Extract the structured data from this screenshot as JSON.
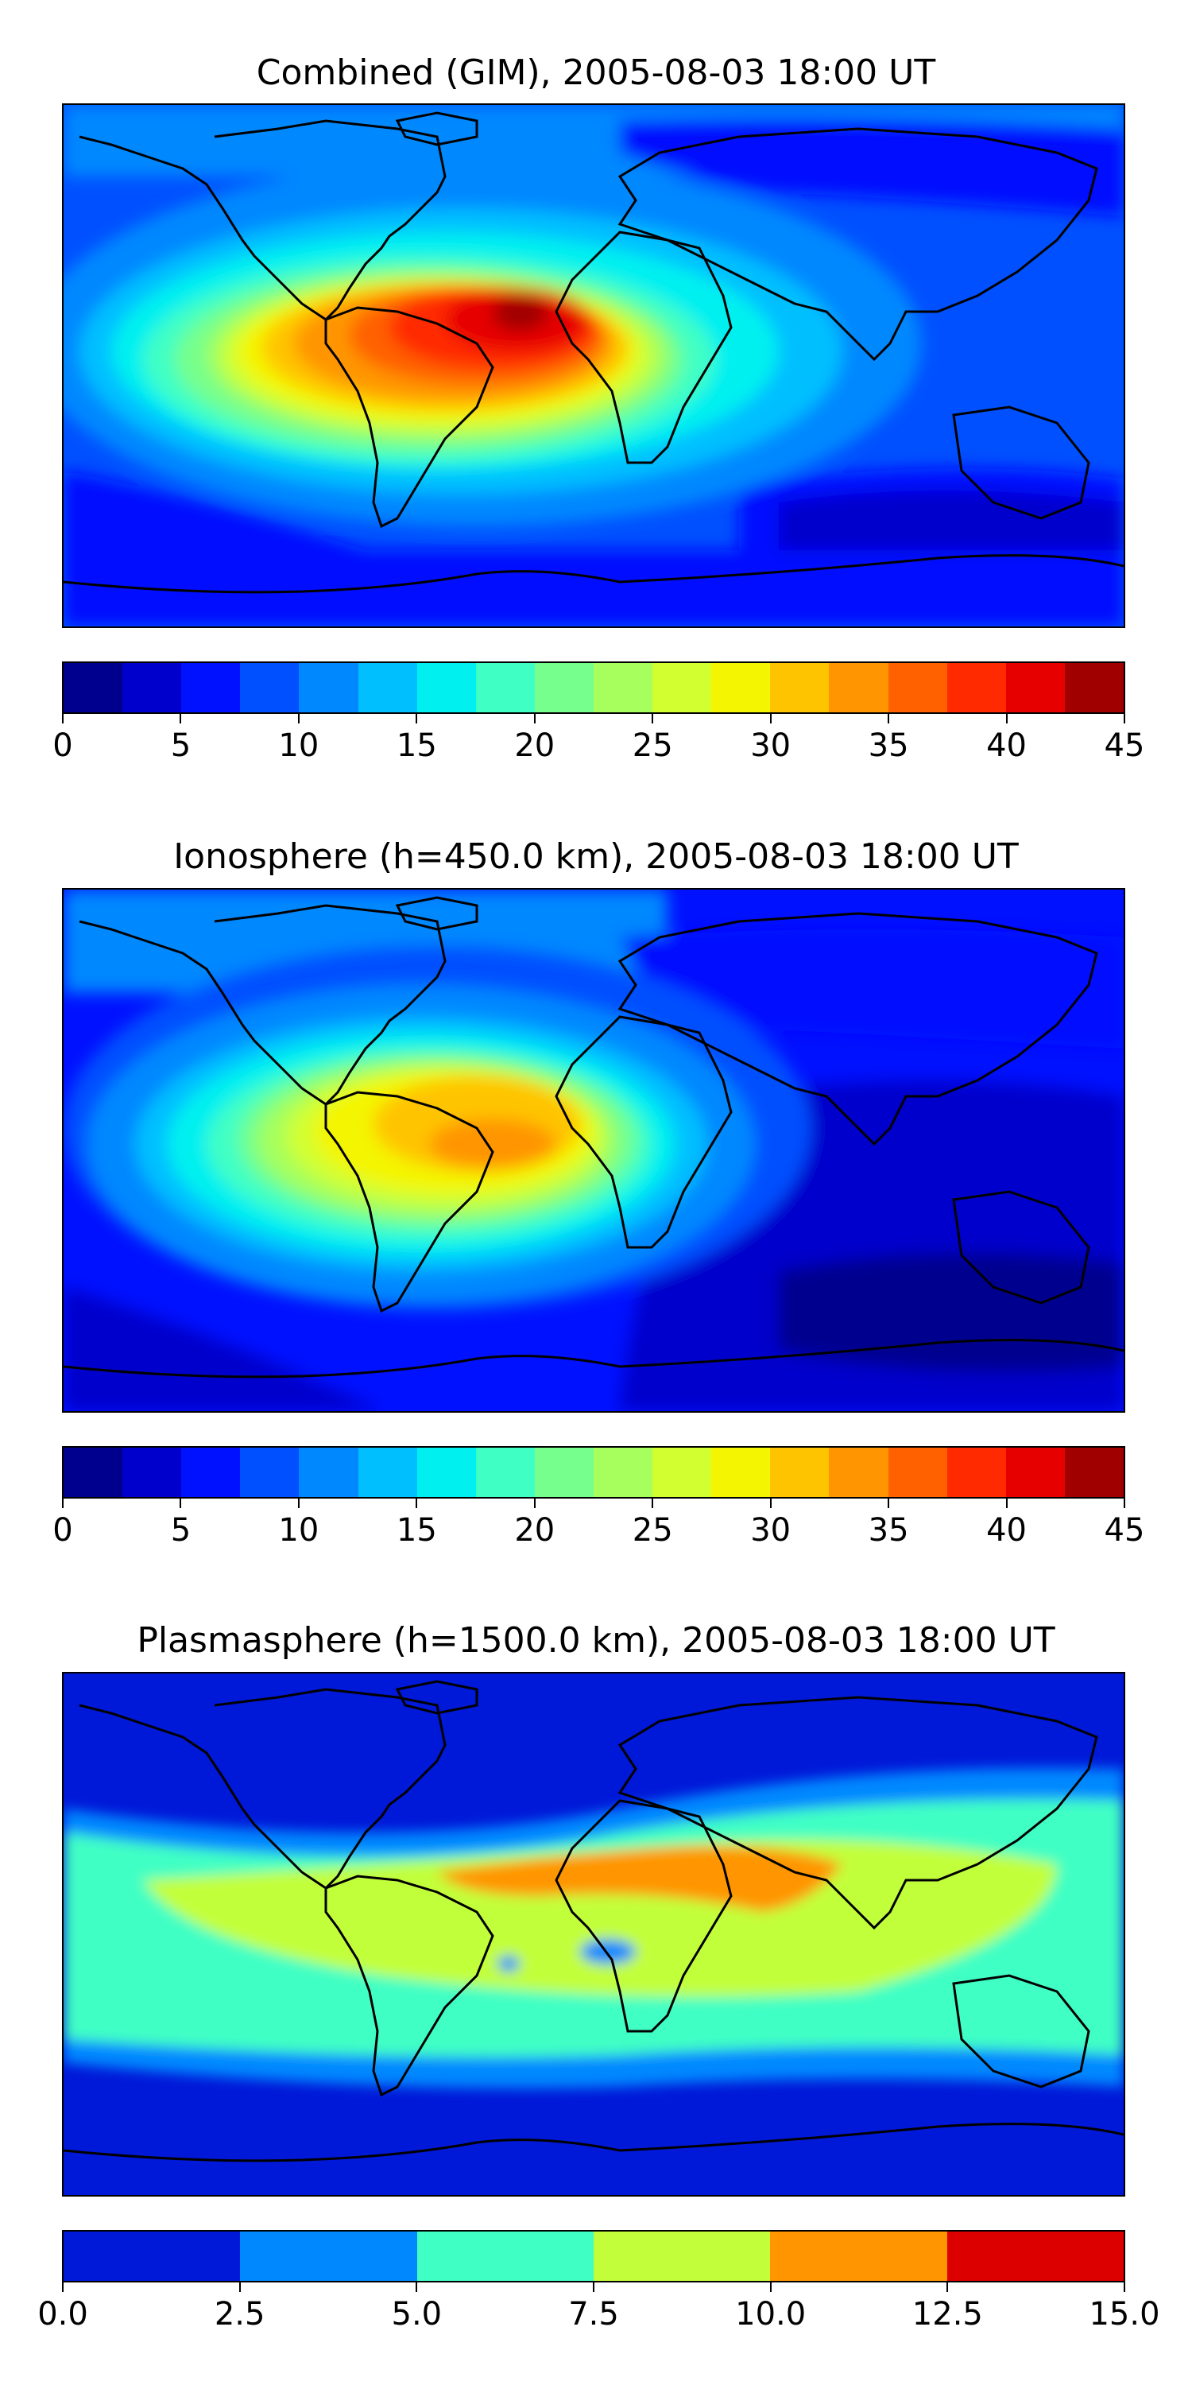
{
  "figure": {
    "panels": [
      {
        "title": "Combined (GIM), 2005-08-03 18:00 UT",
        "colorbar": {
          "ticks": [
            "0",
            "5",
            "10",
            "15",
            "20",
            "25",
            "30",
            "35",
            "40",
            "45"
          ],
          "colors": [
            "#00008f",
            "#0000cc",
            "#0011ff",
            "#0050ff",
            "#0088ff",
            "#00bfff",
            "#00f0f0",
            "#3fffc4",
            "#76ff8c",
            "#a6ff5c",
            "#d2ff30",
            "#f4f500",
            "#ffc400",
            "#ff9500",
            "#ff6100",
            "#ff2a00",
            "#e60000",
            "#a00000"
          ]
        }
      },
      {
        "title": "Ionosphere  (h=450.0 km), 2005-08-03 18:00 UT",
        "colorbar": {
          "ticks": [
            "0",
            "5",
            "10",
            "15",
            "20",
            "25",
            "30",
            "35",
            "40",
            "45"
          ],
          "colors": [
            "#00008f",
            "#0000cc",
            "#0011ff",
            "#0050ff",
            "#0088ff",
            "#00bfff",
            "#00f0f0",
            "#3fffc4",
            "#76ff8c",
            "#a6ff5c",
            "#d2ff30",
            "#f4f500",
            "#ffc400",
            "#ff9500",
            "#ff6100",
            "#ff2a00",
            "#e60000",
            "#a00000"
          ]
        }
      },
      {
        "title": "Plasmasphere (h=1500.0 km), 2005-08-03 18:00 UT",
        "colorbar": {
          "ticks": [
            "0.0",
            "2.5",
            "5.0",
            "7.5",
            "10.0",
            "12.5",
            "15.0"
          ],
          "colors": [
            "#0018d8",
            "#0088ff",
            "#3fffc4",
            "#c2ff3a",
            "#ff9500",
            "#dd0000"
          ]
        }
      }
    ]
  }
}
